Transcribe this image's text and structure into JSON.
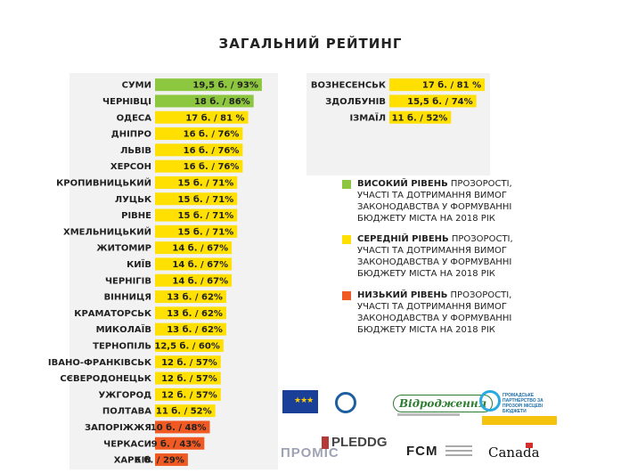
{
  "chart_data": {
    "type": "bar",
    "orientation": "horizontal",
    "title": "ЗАГАЛЬНИЙ РЕЙТИНГ",
    "xlim": [
      0,
      20
    ],
    "colors": {
      "high": "#8dc63f",
      "medium": "#ffe000",
      "low": "#f05a22",
      "panel": "#f2f2f2"
    },
    "left_panel": [
      {
        "city": "СУМИ",
        "value": 19.5,
        "label": "19,5 б. / 93%",
        "level": "high"
      },
      {
        "city": "ЧЕРНІВЦІ",
        "value": 18,
        "label": "18 б. / 86%",
        "level": "high"
      },
      {
        "city": "ОДЕСА",
        "value": 17,
        "label": "17 б. / 81 %",
        "level": "medium"
      },
      {
        "city": "ДНІПРО",
        "value": 16,
        "label": "16 б. / 76%",
        "level": "medium"
      },
      {
        "city": "ЛЬВІВ",
        "value": 16,
        "label": "16 б. / 76%",
        "level": "medium"
      },
      {
        "city": "ХЕРСОН",
        "value": 16,
        "label": "16 б. / 76%",
        "level": "medium"
      },
      {
        "city": "КРОПИВНИЦЬКИЙ",
        "value": 15,
        "label": "15 б. / 71%",
        "level": "medium"
      },
      {
        "city": "ЛУЦЬК",
        "value": 15,
        "label": "15 б. / 71%",
        "level": "medium"
      },
      {
        "city": "РІВНЕ",
        "value": 15,
        "label": "15 б. / 71%",
        "level": "medium"
      },
      {
        "city": "ХМЕЛЬНИЦЬКИЙ",
        "value": 15,
        "label": "15 б. / 71%",
        "level": "medium"
      },
      {
        "city": "ЖИТОМИР",
        "value": 14,
        "label": "14 б. / 67%",
        "level": "medium"
      },
      {
        "city": "КИЇВ",
        "value": 14,
        "label": "14 б. / 67%",
        "level": "medium"
      },
      {
        "city": "ЧЕРНІГІВ",
        "value": 14,
        "label": "14 б. / 67%",
        "level": "medium"
      },
      {
        "city": "ВІННИЦЯ",
        "value": 13,
        "label": "13 б. / 62%",
        "level": "medium"
      },
      {
        "city": "КРАМАТОРСЬК",
        "value": 13,
        "label": "13 б. / 62%",
        "level": "medium"
      },
      {
        "city": "МИКОЛАЇВ",
        "value": 13,
        "label": "13 б. / 62%",
        "level": "medium"
      },
      {
        "city": "ТЕРНОПІЛЬ",
        "value": 12.5,
        "label": "12,5 б. / 60%",
        "level": "medium"
      },
      {
        "city": "ІВАНО-ФРАНКІВСЬК",
        "value": 12,
        "label": "12 б. / 57%",
        "level": "medium"
      },
      {
        "city": "СЄВЕРОДОНЕЦЬК",
        "value": 12,
        "label": "12 б. / 57%",
        "level": "medium"
      },
      {
        "city": "УЖГОРОД",
        "value": 12,
        "label": "12 б. / 57%",
        "level": "medium"
      },
      {
        "city": "ПОЛТАВА",
        "value": 11,
        "label": "11 б. / 52%",
        "level": "medium"
      },
      {
        "city": "ЗАПОРІЖЖЯ",
        "value": 10,
        "label": "10 б. / 48%",
        "level": "low"
      },
      {
        "city": "ЧЕРКАСИ",
        "value": 9,
        "label": "9 б. / 43%",
        "level": "low"
      },
      {
        "city": "ХАРКІВ",
        "value": 6,
        "label": "6 б. / 29%",
        "level": "low"
      }
    ],
    "right_panel": [
      {
        "city": "ВОЗНЕСЕНСЬК",
        "value": 17,
        "label": "17 б. / 81 %",
        "level": "medium"
      },
      {
        "city": "ЗДОЛБУНІВ",
        "value": 15.5,
        "label": "15,5 б. / 74%",
        "level": "medium"
      },
      {
        "city": "ІЗМАЇЛ",
        "value": 11,
        "label": "11 б. / 52%",
        "level": "medium"
      }
    ],
    "legend": [
      {
        "level": "high",
        "head": "ВИСОКИЙ РІВЕНЬ",
        "rest": " ПРОЗОРОСТІ, УЧАСТІ ТА ДОТРИМАННЯ ВИМОГ ЗАКОНОДАВСТВА У ФОРМУВАННІ БЮДЖЕТУ МІСТА НА 2018 РІК"
      },
      {
        "level": "medium",
        "head": "СЕРЕДНІЙ РІВЕНЬ",
        "rest": " ПРОЗОРОСТІ, УЧАСТІ ТА ДОТРИМАННЯ ВИМОГ ЗАКОНОДАВСТВА У ФОРМУВАННІ БЮДЖЕТУ МІСТА НА 2018 РІК"
      },
      {
        "level": "low",
        "head": "НИЗЬКИЙ РІВЕНЬ",
        "rest": " ПРОЗОРОСТІ, УЧАСТІ ТА ДОТРИМАННЯ ВИМОГ ЗАКОНОДАВСТВА У ФОРМУВАННІ БЮДЖЕТУ МІСТА НА 2018 РІК"
      }
    ]
  },
  "logos": {
    "vidrodzhennya": "Відродження",
    "hromad": "ГРОМАДСЬКЕ ПАРТНЕРСТВО ЗА ПРОЗОРІ МІСЦЕВІ БЮДЖЕТИ",
    "promis": "ПРОМІС",
    "pleddg": "PLEDDG",
    "fcm": "FCM",
    "canada": "Canada"
  }
}
